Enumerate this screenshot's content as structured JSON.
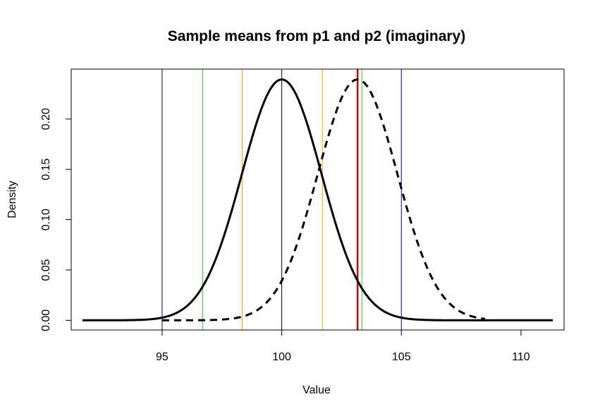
{
  "chart_data": {
    "type": "line",
    "title": "Sample means from p1 and p2 (imaginary)",
    "xlabel": "Value",
    "ylabel": "Density",
    "xlim": [
      91.2,
      111.8
    ],
    "ylim": [
      -0.0096,
      0.2496
    ],
    "x_ticks": [
      95,
      100,
      105,
      110
    ],
    "x_tick_labels": [
      "95",
      "100",
      "105",
      "110"
    ],
    "y_ticks": [
      0.0,
      0.05,
      0.1,
      0.15,
      0.2
    ],
    "y_tick_labels": [
      "0.00",
      "0.05",
      "0.10",
      "0.15",
      "0.20"
    ],
    "grid": false,
    "legend": "none",
    "series": [
      {
        "style": "solid",
        "color": "#000000",
        "mean": 100.0,
        "sd": 1.667,
        "x_range": [
          91.67,
          111.33
        ]
      },
      {
        "style": "dashed",
        "color": "#000000",
        "mean": 103.17,
        "sd": 1.667,
        "x_range": [
          95.0,
          108.5
        ]
      }
    ],
    "vertical_lines": [
      {
        "x": 95.0,
        "color": "#00008B"
      },
      {
        "x": 96.7,
        "color": "#22CC22"
      },
      {
        "x": 98.35,
        "color": "#FF8C00"
      },
      {
        "x": 100.0,
        "color": "#000000"
      },
      {
        "x": 101.7,
        "color": "#FFA500"
      },
      {
        "x": 103.17,
        "color": "#CC0000",
        "thick": true
      },
      {
        "x": 103.35,
        "color": "#22CC22"
      },
      {
        "x": 105.0,
        "color": "#00008B"
      }
    ]
  }
}
